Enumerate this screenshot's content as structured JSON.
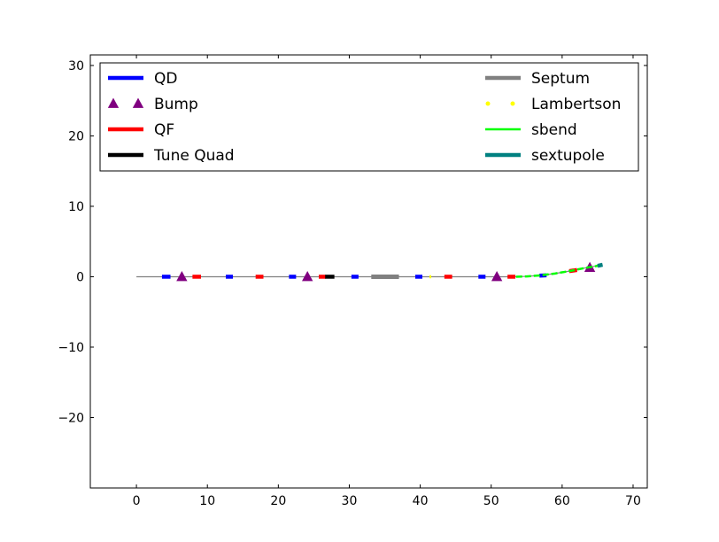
{
  "chart_data": {
    "type": "line",
    "title": "",
    "xlabel": "",
    "ylabel": "",
    "xlim": [
      -6.5,
      72
    ],
    "ylim": [
      -30,
      31.5
    ],
    "xticks": [
      0,
      10,
      20,
      30,
      40,
      50,
      60,
      70
    ],
    "yticks": [
      -20,
      -10,
      0,
      10,
      20,
      30
    ],
    "xtick_labels": [
      "0",
      "10",
      "20",
      "30",
      "40",
      "50",
      "60",
      "70"
    ],
    "ytick_labels": [
      "−20",
      "−10",
      "0",
      "10",
      "20",
      "30"
    ],
    "grid": false,
    "legend_position": "top",
    "beamline": {
      "color": "#808080",
      "x": [
        0,
        53,
        55,
        57,
        59,
        61,
        63,
        65.7
      ],
      "y": [
        0,
        0,
        0.05,
        0.2,
        0.45,
        0.8,
        1.2,
        1.7
      ]
    },
    "series": [
      {
        "name": "QD",
        "marker": "segment",
        "color": "#0000ff",
        "segments": [
          [
            3.6,
            4.8,
            0,
            0
          ],
          [
            12.6,
            13.6,
            0,
            0
          ],
          [
            21.5,
            22.5,
            0,
            0
          ],
          [
            30.3,
            31.3,
            0,
            0
          ],
          [
            39.3,
            40.3,
            0,
            0
          ],
          [
            48.2,
            49.2,
            0,
            0
          ],
          [
            56.8,
            57.8,
            0.15,
            0.2
          ]
        ]
      },
      {
        "name": "Bump",
        "marker": "triangle",
        "color": "#800080",
        "x": [
          6.4,
          24.1,
          50.8,
          63.9
        ],
        "y": [
          0,
          0,
          0,
          1.3
        ]
      },
      {
        "name": "QF",
        "marker": "segment",
        "color": "#ff0000",
        "segments": [
          [
            7.9,
            9.1,
            0,
            0
          ],
          [
            16.8,
            17.9,
            0,
            0
          ],
          [
            25.7,
            26.7,
            0,
            0
          ],
          [
            34.5,
            35.4,
            0,
            0
          ],
          [
            43.4,
            44.5,
            0,
            0
          ],
          [
            52.3,
            53.4,
            0,
            0
          ],
          [
            61.0,
            62.1,
            0.8,
            0.95
          ]
        ]
      },
      {
        "name": "Tune Quad",
        "marker": "segment",
        "color": "#000000",
        "segments": [
          [
            26.6,
            27.9,
            0,
            0
          ]
        ]
      },
      {
        "name": "Septum",
        "marker": "segment",
        "color": "#808080",
        "segments": [
          [
            33.1,
            37.0,
            0,
            0
          ]
        ]
      },
      {
        "name": "Lambertson",
        "marker": "dots",
        "color": "#ffff00",
        "segments": [
          [
            41.3,
            42.3,
            0,
            0
          ]
        ]
      },
      {
        "name": "sbend",
        "marker": "dashed",
        "color": "#00ff00",
        "x": [
          53.5,
          55,
          57,
          59,
          61,
          63,
          65
        ],
        "y": [
          0,
          0.05,
          0.2,
          0.45,
          0.8,
          1.2,
          1.55
        ]
      },
      {
        "name": "sextupole",
        "marker": "segment",
        "color": "#008080",
        "segments": [
          [
            65.0,
            65.7,
            1.55,
            1.7
          ]
        ]
      }
    ]
  }
}
